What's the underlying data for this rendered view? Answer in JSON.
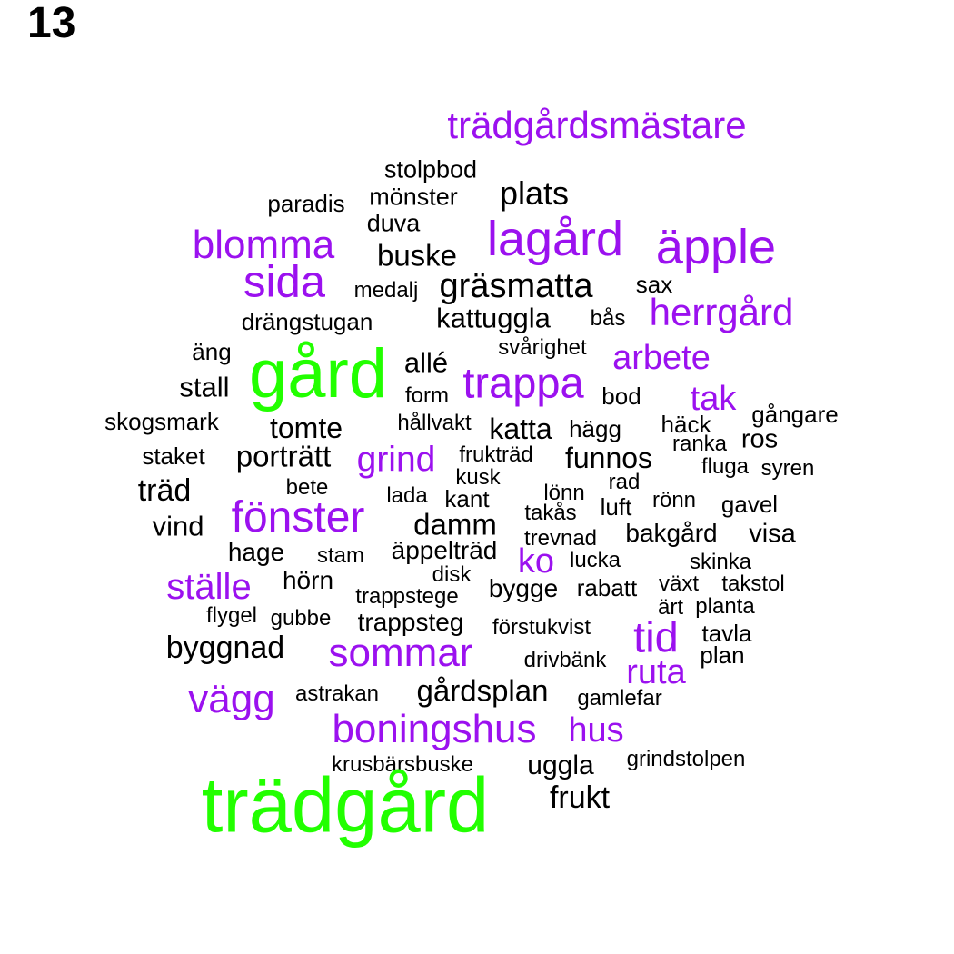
{
  "panel_number": "13",
  "colors": {
    "top": "#22ff00",
    "mid": "#9b11ef",
    "base": "#000000"
  },
  "words": [
    {
      "text": "trädgårdsmästare",
      "tier": "mid"
    },
    {
      "text": "stolpbod",
      "tier": "base"
    },
    {
      "text": "plats",
      "tier": "base"
    },
    {
      "text": "paradis",
      "tier": "base"
    },
    {
      "text": "mönster",
      "tier": "base"
    },
    {
      "text": "duva",
      "tier": "base"
    },
    {
      "text": "lagård",
      "tier": "mid"
    },
    {
      "text": "blomma",
      "tier": "mid"
    },
    {
      "text": "äpple",
      "tier": "mid"
    },
    {
      "text": "buske",
      "tier": "base"
    },
    {
      "text": "sida",
      "tier": "mid"
    },
    {
      "text": "gräsmatta",
      "tier": "base"
    },
    {
      "text": "medalj",
      "tier": "base"
    },
    {
      "text": "sax",
      "tier": "base"
    },
    {
      "text": "herrgård",
      "tier": "mid"
    },
    {
      "text": "drängstugan",
      "tier": "base"
    },
    {
      "text": "kattuggla",
      "tier": "base"
    },
    {
      "text": "bås",
      "tier": "base"
    },
    {
      "text": "svårighet",
      "tier": "base"
    },
    {
      "text": "äng",
      "tier": "base"
    },
    {
      "text": "gård",
      "tier": "top"
    },
    {
      "text": "allé",
      "tier": "base"
    },
    {
      "text": "arbete",
      "tier": "mid"
    },
    {
      "text": "stall",
      "tier": "base"
    },
    {
      "text": "trappa",
      "tier": "mid"
    },
    {
      "text": "form",
      "tier": "base"
    },
    {
      "text": "bod",
      "tier": "base"
    },
    {
      "text": "tak",
      "tier": "mid"
    },
    {
      "text": "skogsmark",
      "tier": "base"
    },
    {
      "text": "gångare",
      "tier": "base"
    },
    {
      "text": "tomte",
      "tier": "base"
    },
    {
      "text": "hållvakt",
      "tier": "base"
    },
    {
      "text": "katta",
      "tier": "base"
    },
    {
      "text": "hägg",
      "tier": "base"
    },
    {
      "text": "häck",
      "tier": "base"
    },
    {
      "text": "ros",
      "tier": "base"
    },
    {
      "text": "ranka",
      "tier": "base"
    },
    {
      "text": "staket",
      "tier": "base"
    },
    {
      "text": "porträtt",
      "tier": "base"
    },
    {
      "text": "grind",
      "tier": "mid"
    },
    {
      "text": "frukträd",
      "tier": "base"
    },
    {
      "text": "funnos",
      "tier": "base"
    },
    {
      "text": "fluga",
      "tier": "base"
    },
    {
      "text": "syren",
      "tier": "base"
    },
    {
      "text": "kusk",
      "tier": "base"
    },
    {
      "text": "träd",
      "tier": "base"
    },
    {
      "text": "bete",
      "tier": "base"
    },
    {
      "text": "rad",
      "tier": "base"
    },
    {
      "text": "lönn",
      "tier": "base"
    },
    {
      "text": "lada",
      "tier": "base"
    },
    {
      "text": "kant",
      "tier": "base"
    },
    {
      "text": "fönster",
      "tier": "mid"
    },
    {
      "text": "rönn",
      "tier": "base"
    },
    {
      "text": "gavel",
      "tier": "base"
    },
    {
      "text": "luft",
      "tier": "base"
    },
    {
      "text": "takås",
      "tier": "base"
    },
    {
      "text": "vind",
      "tier": "base"
    },
    {
      "text": "damm",
      "tier": "base"
    },
    {
      "text": "trevnad",
      "tier": "base"
    },
    {
      "text": "bakgård",
      "tier": "base"
    },
    {
      "text": "visa",
      "tier": "base"
    },
    {
      "text": "äppelträd",
      "tier": "base"
    },
    {
      "text": "hage",
      "tier": "base"
    },
    {
      "text": "stam",
      "tier": "base"
    },
    {
      "text": "ko",
      "tier": "mid"
    },
    {
      "text": "lucka",
      "tier": "base"
    },
    {
      "text": "skinka",
      "tier": "base"
    },
    {
      "text": "disk",
      "tier": "base"
    },
    {
      "text": "hörn",
      "tier": "base"
    },
    {
      "text": "ställe",
      "tier": "mid"
    },
    {
      "text": "takstol",
      "tier": "base"
    },
    {
      "text": "växt",
      "tier": "base"
    },
    {
      "text": "rabatt",
      "tier": "base"
    },
    {
      "text": "bygge",
      "tier": "base"
    },
    {
      "text": "trappstege",
      "tier": "base"
    },
    {
      "text": "ärt",
      "tier": "base"
    },
    {
      "text": "planta",
      "tier": "base"
    },
    {
      "text": "flygel",
      "tier": "base"
    },
    {
      "text": "gubbe",
      "tier": "base"
    },
    {
      "text": "trappsteg",
      "tier": "base"
    },
    {
      "text": "förstukvist",
      "tier": "base"
    },
    {
      "text": "tid",
      "tier": "mid"
    },
    {
      "text": "tavla",
      "tier": "base"
    },
    {
      "text": "byggnad",
      "tier": "base"
    },
    {
      "text": "sommar",
      "tier": "mid"
    },
    {
      "text": "drivbänk",
      "tier": "base"
    },
    {
      "text": "plan",
      "tier": "base"
    },
    {
      "text": "ruta",
      "tier": "mid"
    },
    {
      "text": "vägg",
      "tier": "mid"
    },
    {
      "text": "astrakan",
      "tier": "base"
    },
    {
      "text": "gårdsplan",
      "tier": "base"
    },
    {
      "text": "gamlefar",
      "tier": "base"
    },
    {
      "text": "boningshus",
      "tier": "mid"
    },
    {
      "text": "hus",
      "tier": "mid"
    },
    {
      "text": "krusbärsbuske",
      "tier": "base"
    },
    {
      "text": "uggla",
      "tier": "base"
    },
    {
      "text": "grindstolpen",
      "tier": "base"
    },
    {
      "text": "frukt",
      "tier": "base"
    },
    {
      "text": "trädgård",
      "tier": "top"
    }
  ]
}
